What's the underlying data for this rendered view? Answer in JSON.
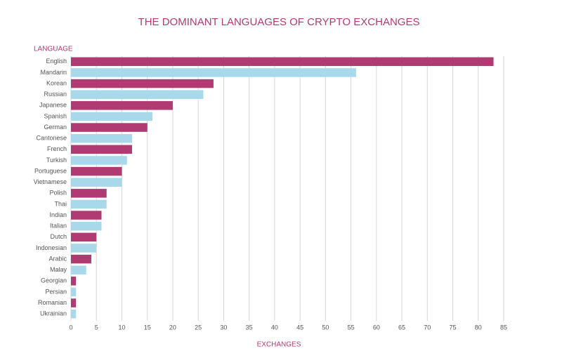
{
  "chart_data": {
    "type": "barh",
    "title": "THE DOMINANT LANGUAGES OF CRYPTO EXCHANGES",
    "y_label": "LANGUAGE",
    "x_label": "EXCHANGES",
    "categories": [
      "English",
      "Mandarin",
      "Korean",
      "Russian",
      "Japanese",
      "Spanish",
      "German",
      "Cantonese",
      "French",
      "Turkish",
      "Portuguese",
      "Vietnamese",
      "Polish",
      "Thai",
      "Indian",
      "Italian",
      "Dutch",
      "Indonesian",
      "Arabic",
      "Malay",
      "Georgian",
      "Persian",
      "Romanian",
      "Ukrainian"
    ],
    "values": [
      83,
      56,
      28,
      26,
      20,
      16,
      15,
      12,
      12,
      11,
      10,
      10,
      7,
      7,
      6,
      6,
      5,
      5,
      4,
      3,
      1,
      1,
      1,
      1
    ],
    "colors": [
      "#b03a72",
      "#a8d8ea"
    ],
    "xlim": [
      0,
      85
    ],
    "xticks": [
      0,
      5,
      10,
      15,
      20,
      25,
      30,
      35,
      40,
      45,
      50,
      55,
      60,
      65,
      70,
      75,
      80,
      85
    ],
    "grid": true
  }
}
